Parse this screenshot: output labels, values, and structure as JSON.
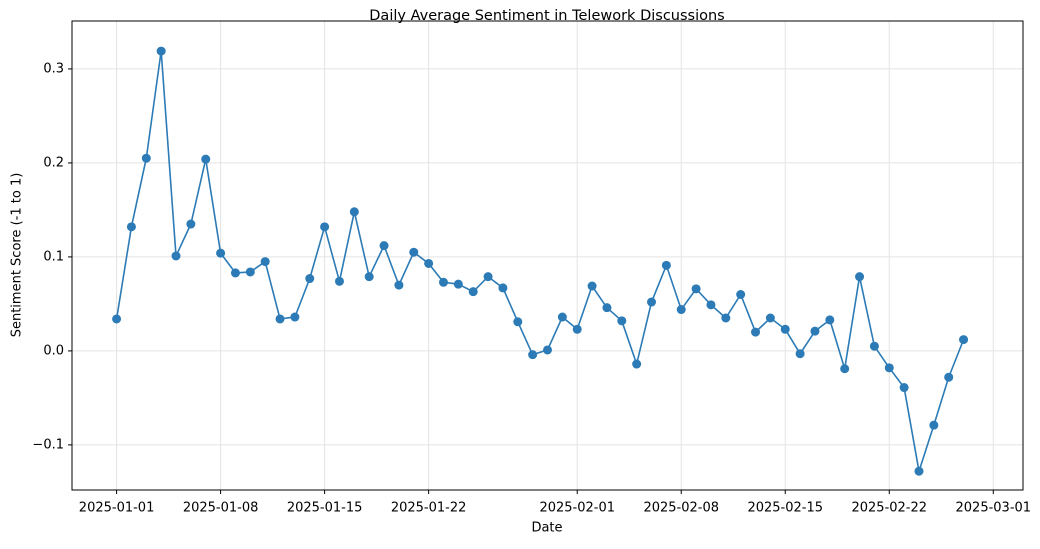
{
  "chart_data": {
    "type": "line",
    "title": "Daily Average Sentiment in Telework Discussions",
    "xlabel": "Date",
    "ylabel": "Sentiment Score (-1 to 1)",
    "x": [
      "2025-01-01",
      "2025-01-02",
      "2025-01-03",
      "2025-01-04",
      "2025-01-05",
      "2025-01-06",
      "2025-01-07",
      "2025-01-08",
      "2025-01-09",
      "2025-01-10",
      "2025-01-11",
      "2025-01-12",
      "2025-01-13",
      "2025-01-14",
      "2025-01-15",
      "2025-01-16",
      "2025-01-17",
      "2025-01-18",
      "2025-01-19",
      "2025-01-20",
      "2025-01-21",
      "2025-01-22",
      "2025-01-23",
      "2025-01-24",
      "2025-01-25",
      "2025-01-26",
      "2025-01-27",
      "2025-01-28",
      "2025-01-29",
      "2025-01-30",
      "2025-01-31",
      "2025-02-01",
      "2025-02-02",
      "2025-02-03",
      "2025-02-04",
      "2025-02-05",
      "2025-02-06",
      "2025-02-07",
      "2025-02-08",
      "2025-02-09",
      "2025-02-10",
      "2025-02-11",
      "2025-02-12",
      "2025-02-13",
      "2025-02-14",
      "2025-02-15",
      "2025-02-16",
      "2025-02-17",
      "2025-02-18",
      "2025-02-19",
      "2025-02-20",
      "2025-02-21",
      "2025-02-22",
      "2025-02-23",
      "2025-02-24",
      "2025-02-25",
      "2025-02-26",
      "2025-02-27"
    ],
    "series": [
      {
        "color": "#2c7bb6",
        "values": [
          0.034,
          0.132,
          0.205,
          0.319,
          0.101,
          0.135,
          0.204,
          0.104,
          0.083,
          0.084,
          0.095,
          0.034,
          0.036,
          0.077,
          0.132,
          0.074,
          0.148,
          0.079,
          0.112,
          0.07,
          0.105,
          0.093,
          0.073,
          0.071,
          0.063,
          0.079,
          0.067,
          0.031,
          -0.004,
          0.001,
          0.036,
          0.023,
          0.069,
          0.046,
          0.032,
          -0.014,
          0.052,
          0.091,
          0.044,
          0.066,
          0.049,
          0.035,
          0.06,
          0.02,
          0.035,
          0.023,
          -0.003,
          0.021,
          0.033,
          -0.019,
          0.079,
          0.005,
          -0.018,
          -0.039,
          -0.128,
          -0.079,
          -0.028,
          0.012
        ]
      }
    ],
    "xlim": [
      "2024-12-29",
      "2025-03-03"
    ],
    "xticks": [
      "2025-01-01",
      "2025-01-08",
      "2025-01-15",
      "2025-01-22",
      "2025-02-01",
      "2025-02-08",
      "2025-02-15",
      "2025-02-22",
      "2025-03-01"
    ],
    "ylim": [
      -0.148,
      0.351
    ],
    "yticks": [
      {
        "value": -0.1,
        "label": "−0.1"
      },
      {
        "value": 0,
        "label": "0.0"
      },
      0.1,
      0.2,
      0.3
    ],
    "grid": true
  }
}
